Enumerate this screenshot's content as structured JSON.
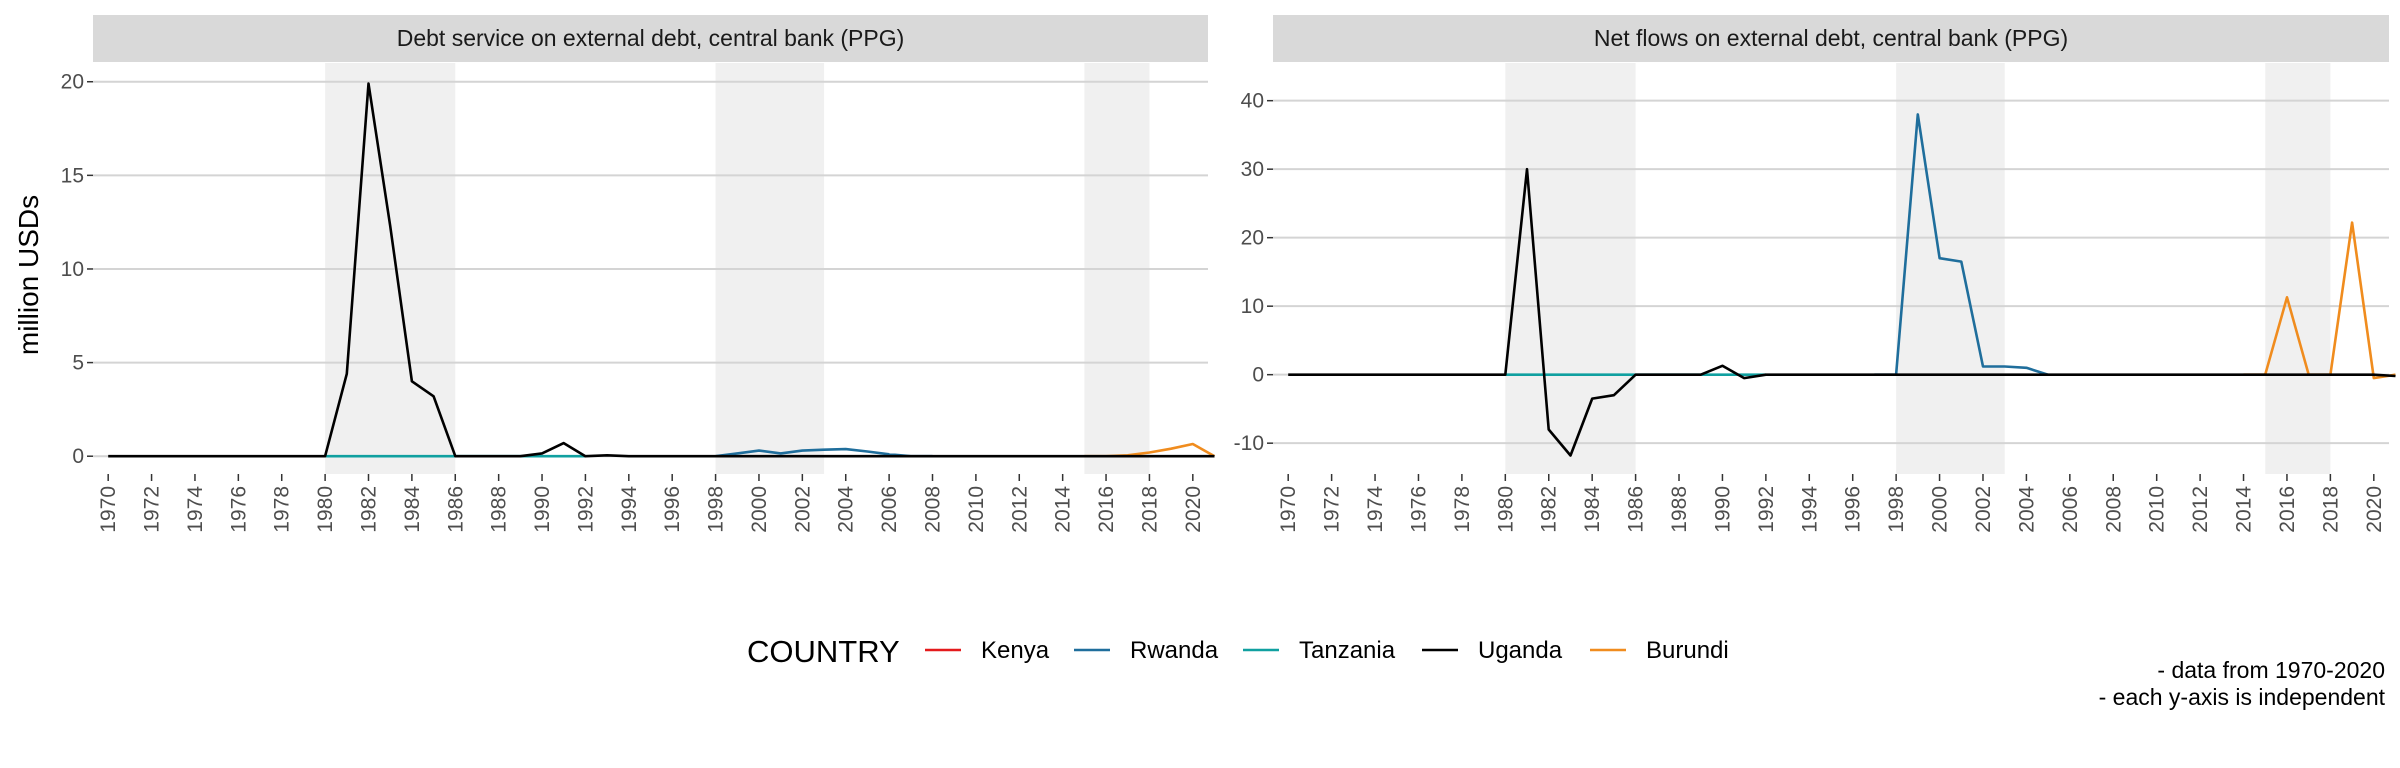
{
  "chart_data": {
    "type": "line",
    "ylabel": "million USDs",
    "legend": {
      "title": "COUNTRY",
      "position": "bottom",
      "entries": [
        {
          "name": "Kenya",
          "color": "#e41a1c"
        },
        {
          "name": "Rwanda",
          "color": "#1f6e9c"
        },
        {
          "name": "Tanzania",
          "color": "#10a0a0"
        },
        {
          "name": "Uganda",
          "color": "#000000"
        },
        {
          "name": "Burundi",
          "color": "#f08c1e"
        }
      ]
    },
    "caption": [
      "- data from 1970-2020",
      "- each y-axis is independent"
    ],
    "x_ticks": [
      1970,
      1972,
      1974,
      1976,
      1978,
      1980,
      1982,
      1984,
      1986,
      1988,
      1990,
      1992,
      1994,
      1996,
      1998,
      2000,
      2002,
      2004,
      2006,
      2008,
      2010,
      2012,
      2014,
      2016,
      2018,
      2020
    ],
    "xlim": [
      1969.3,
      2020.7
    ],
    "shaded_periods": [
      [
        1980,
        1986
      ],
      [
        1998,
        2003
      ],
      [
        2015,
        2018
      ]
    ],
    "grid": true,
    "panels": [
      {
        "title": "Debt service on external debt, central bank (PPG)",
        "ylim": [
          -0.95,
          21.0
        ],
        "y_ticks": [
          0,
          5,
          10,
          15,
          20
        ],
        "series": [
          {
            "name": "Tanzania",
            "color": "#10a0a0",
            "x": [
              1980,
              1992
            ],
            "y": [
              0,
              0
            ]
          },
          {
            "name": "Rwanda",
            "color": "#1f6e9c",
            "x": [
              1998,
              1999,
              2000,
              2001,
              2002,
              2003,
              2004,
              2005,
              2006,
              2007,
              2008
            ],
            "y": [
              0,
              0.15,
              0.3,
              0.15,
              0.3,
              0.35,
              0.38,
              0.25,
              0.1,
              0,
              0
            ]
          },
          {
            "name": "Burundi",
            "color": "#f08c1e",
            "x": [
              2015,
              2016,
              2017,
              2018,
              2019,
              2020,
              2021
            ],
            "y": [
              0,
              0,
              0.05,
              0.2,
              0.4,
              0.65,
              0
            ]
          },
          {
            "name": "Uganda",
            "color": "#000000",
            "x": [
              1970,
              1971,
              1972,
              1973,
              1974,
              1975,
              1976,
              1977,
              1978,
              1979,
              1980,
              1981,
              1982,
              1983,
              1984,
              1985,
              1986,
              1987,
              1988,
              1989,
              1990,
              1991,
              1992,
              1993,
              1994,
              1995,
              1996,
              1997,
              1998,
              1999,
              2000,
              2001,
              2002,
              2003,
              2004,
              2005,
              2006,
              2007,
              2008,
              2009,
              2010,
              2011,
              2012,
              2013,
              2014,
              2015,
              2016,
              2017,
              2018,
              2019,
              2020,
              2021
            ],
            "y": [
              0,
              0,
              0,
              0,
              0,
              0,
              0,
              0,
              0,
              0,
              0,
              4.4,
              19.9,
              12.3,
              4.0,
              3.2,
              0,
              0,
              0,
              0,
              0.15,
              0.7,
              0,
              0.05,
              0,
              0,
              0,
              0,
              0,
              0,
              0,
              0,
              0,
              0,
              0,
              0,
              0,
              0,
              0,
              0,
              0,
              0,
              0,
              0,
              0,
              0,
              0,
              0,
              0,
              0,
              0,
              0
            ]
          }
        ]
      },
      {
        "title": "Net flows on external debt, central bank (PPG)",
        "ylim": [
          -14.5,
          45.5
        ],
        "y_ticks": [
          -10,
          0,
          10,
          20,
          30,
          40
        ],
        "series": [
          {
            "name": "Tanzania",
            "color": "#10a0a0",
            "x": [
              1980,
              1992
            ],
            "y": [
              0,
              0
            ]
          },
          {
            "name": "Rwanda",
            "color": "#1f6e9c",
            "x": [
              1997,
              1998,
              1999,
              2000,
              2001,
              2002,
              2003,
              2004,
              2005
            ],
            "y": [
              0,
              0,
              38.0,
              17.0,
              16.5,
              1.2,
              1.2,
              1.0,
              0
            ]
          },
          {
            "name": "Burundi",
            "color": "#f08c1e",
            "x": [
              2014,
              2015,
              2016,
              2017,
              2018,
              2019,
              2020,
              2021
            ],
            "y": [
              0,
              0,
              11.3,
              0,
              0,
              22.2,
              -0.5,
              0
            ]
          },
          {
            "name": "Uganda",
            "color": "#000000",
            "x": [
              1970,
              1971,
              1972,
              1973,
              1974,
              1975,
              1976,
              1977,
              1978,
              1979,
              1980,
              1981,
              1982,
              1983,
              1984,
              1985,
              1986,
              1987,
              1988,
              1989,
              1990,
              1991,
              1992,
              1993,
              1994,
              1995,
              1996,
              1997,
              1998,
              1999,
              2000,
              2001,
              2002,
              2003,
              2004,
              2005,
              2006,
              2007,
              2008,
              2009,
              2010,
              2011,
              2012,
              2013,
              2014,
              2015,
              2016,
              2017,
              2018,
              2019,
              2020,
              2021
            ],
            "y": [
              0,
              0,
              0,
              0,
              0,
              0,
              0,
              0,
              0,
              0,
              0,
              30.0,
              -8.0,
              -11.8,
              -3.5,
              -3.0,
              0,
              0,
              0,
              0,
              1.3,
              -0.5,
              0,
              0,
              0,
              0,
              0,
              0,
              0,
              0,
              0,
              0,
              0,
              0,
              0,
              0,
              0,
              0,
              0,
              0,
              0,
              0,
              0,
              0,
              0,
              0,
              0,
              0,
              0,
              0,
              0,
              -0.2
            ]
          }
        ]
      }
    ]
  }
}
